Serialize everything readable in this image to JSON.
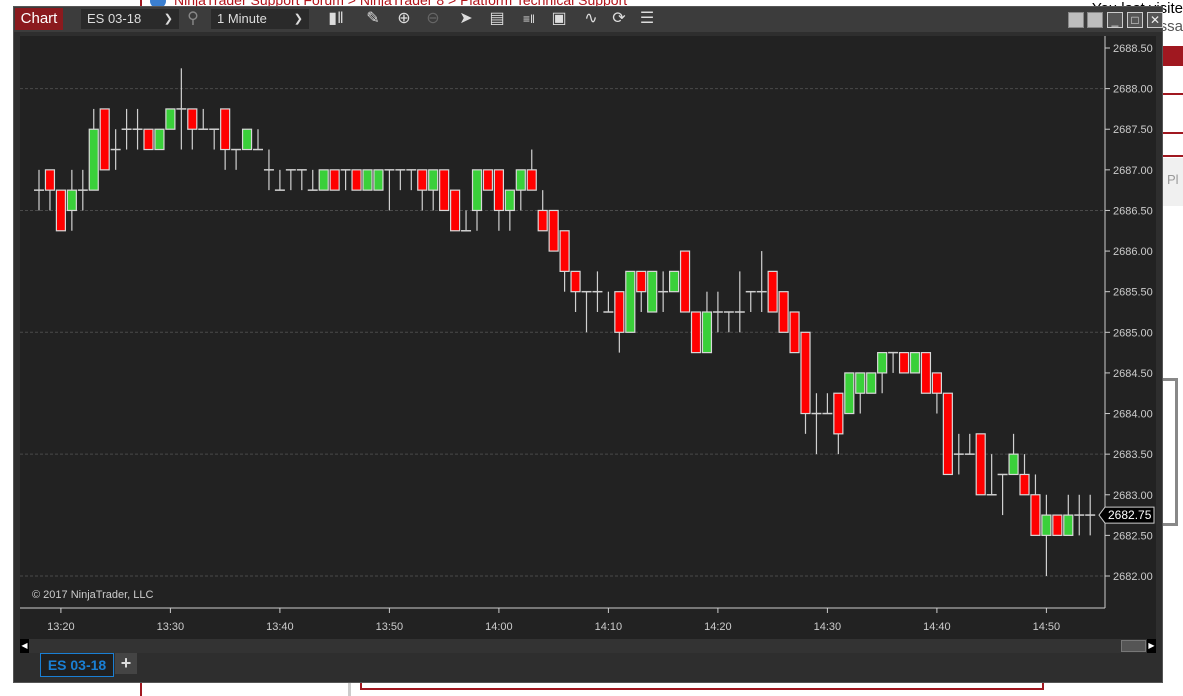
{
  "background_page": {
    "breadcrumb": "NinjaTrader Support Forum > NinjaTrader 8 > Platform Technical Support",
    "right_text_1": "You last visite",
    "right_text_2": "essa",
    "right_button_text": "Pl"
  },
  "toolbar": {
    "chart_button": "Chart",
    "instrument": "ES 03-18",
    "interval": "1 Minute",
    "icons": [
      "bar-type-icon",
      "pencil-drawing-icon",
      "zoom-in-icon",
      "zoom-out-icon",
      "pointer-icon",
      "data-box-icon",
      "chart-trader-icon",
      "templates-icon",
      "strategies-icon",
      "reload-icon",
      "properties-list-icon"
    ]
  },
  "window_buttons": [
    "tile-icon",
    "tile-icon",
    "minimize-icon",
    "maximize-icon",
    "close-icon"
  ],
  "copyright": "© 2017 NinjaTrader, LLC",
  "last_price_label": "2682.75",
  "tabs": [
    {
      "label": "ES 03-18",
      "active": true
    }
  ],
  "add_tab": "+",
  "colors": {
    "up": "#3ad03a",
    "down": "#ff0000",
    "background": "#222222",
    "accent": "#8b1a1e",
    "tab": "#1a7fd4"
  },
  "chart_data": {
    "type": "candlestick",
    "xlabel": "",
    "ylabel": "",
    "ylim": [
      2682.0,
      2688.5
    ],
    "y_ticks": [
      "2688.50",
      "2688.00",
      "2687.50",
      "2687.00",
      "2686.50",
      "2686.00",
      "2685.50",
      "2685.00",
      "2684.50",
      "2684.00",
      "2683.50",
      "2683.00",
      "2682.50",
      "2682.00"
    ],
    "x_ticks": [
      "13:20",
      "13:30",
      "13:40",
      "13:50",
      "14:00",
      "14:10",
      "14:20",
      "14:30",
      "14:40",
      "14:50"
    ],
    "grid": "dashed horizontal every 1.50",
    "columns": [
      "time",
      "open",
      "high",
      "low",
      "close"
    ],
    "candles": [
      [
        "13:18",
        2686.75,
        2687,
        2686.5,
        2686.75
      ],
      [
        "13:19",
        2687,
        2687,
        2686.5,
        2686.75
      ],
      [
        "13:20",
        2686.75,
        2686.75,
        2686.25,
        2686.25
      ],
      [
        "13:21",
        2686.5,
        2687,
        2686.25,
        2686.75
      ],
      [
        "13:22",
        2686.75,
        2687,
        2686.5,
        2686.75
      ],
      [
        "13:23",
        2686.75,
        2687.75,
        2686.75,
        2687.5
      ],
      [
        "13:24",
        2687.75,
        2687.75,
        2687,
        2687
      ],
      [
        "13:25",
        2687.25,
        2687.5,
        2687,
        2687.25
      ],
      [
        "13:26",
        2687.5,
        2687.75,
        2687.25,
        2687.5
      ],
      [
        "13:27",
        2687.5,
        2687.75,
        2687.25,
        2687.5
      ],
      [
        "13:28",
        2687.5,
        2687.5,
        2687.25,
        2687.25
      ],
      [
        "13:29",
        2687.25,
        2687.5,
        2687.25,
        2687.5
      ],
      [
        "13:30",
        2687.5,
        2687.75,
        2687.5,
        2687.75
      ],
      [
        "13:31",
        2687.75,
        2688.25,
        2687.25,
        2687.75
      ],
      [
        "13:32",
        2687.75,
        2687.75,
        2687.25,
        2687.5
      ],
      [
        "13:33",
        2687.5,
        2687.75,
        2687.5,
        2687.5
      ],
      [
        "13:34",
        2687.5,
        2687.5,
        2687.25,
        2687.5
      ],
      [
        "13:35",
        2687.75,
        2687.75,
        2687,
        2687.25
      ],
      [
        "13:36",
        2687.25,
        2687.25,
        2687,
        2687.25
      ],
      [
        "13:37",
        2687.25,
        2687.5,
        2687.25,
        2687.5
      ],
      [
        "13:38",
        2687.25,
        2687.5,
        2687.25,
        2687.25
      ],
      [
        "13:39",
        2687,
        2687.25,
        2686.75,
        2687
      ],
      [
        "13:40",
        2686.75,
        2687,
        2686.75,
        2686.75
      ],
      [
        "13:41",
        2687,
        2687,
        2686.75,
        2687
      ],
      [
        "13:42",
        2687,
        2687,
        2686.75,
        2687
      ],
      [
        "13:43",
        2686.75,
        2687,
        2686.75,
        2686.75
      ],
      [
        "13:44",
        2686.75,
        2687,
        2686.75,
        2687
      ],
      [
        "13:45",
        2687,
        2687,
        2686.75,
        2686.75
      ],
      [
        "13:46",
        2687,
        2687,
        2686.75,
        2687
      ],
      [
        "13:47",
        2687,
        2687,
        2686.75,
        2686.75
      ],
      [
        "13:48",
        2686.75,
        2687,
        2686.75,
        2687
      ],
      [
        "13:49",
        2686.75,
        2687,
        2686.75,
        2687
      ],
      [
        "13:50",
        2687,
        2687,
        2686.5,
        2687
      ],
      [
        "13:51",
        2687,
        2687,
        2686.75,
        2687
      ],
      [
        "13:52",
        2687,
        2687,
        2686.75,
        2687
      ],
      [
        "13:53",
        2687,
        2687,
        2686.5,
        2686.75
      ],
      [
        "13:54",
        2686.75,
        2687,
        2686.5,
        2687
      ],
      [
        "13:55",
        2687,
        2687,
        2686.5,
        2686.5
      ],
      [
        "13:56",
        2686.75,
        2686.75,
        2686.25,
        2686.25
      ],
      [
        "13:57",
        2686.25,
        2686.5,
        2686.25,
        2686.25
      ],
      [
        "13:58",
        2686.5,
        2687,
        2686.25,
        2687
      ],
      [
        "13:59",
        2687,
        2687,
        2686.75,
        2686.75
      ],
      [
        "14:00",
        2687,
        2687,
        2686.25,
        2686.5
      ],
      [
        "14:01",
        2686.5,
        2686.75,
        2686.25,
        2686.75
      ],
      [
        "14:02",
        2686.75,
        2687,
        2686.5,
        2687
      ],
      [
        "14:03",
        2687,
        2687.25,
        2686.75,
        2686.75
      ],
      [
        "14:04",
        2686.5,
        2686.75,
        2686.25,
        2686.25
      ],
      [
        "14:05",
        2686.5,
        2686.5,
        2686,
        2686
      ],
      [
        "14:06",
        2686.25,
        2686.25,
        2685.5,
        2685.75
      ],
      [
        "14:07",
        2685.75,
        2685.75,
        2685.25,
        2685.5
      ],
      [
        "14:08",
        2685.5,
        2685.5,
        2685,
        2685.5
      ],
      [
        "14:09",
        2685.5,
        2685.75,
        2685.25,
        2685.5
      ],
      [
        "14:10",
        2685.25,
        2685.5,
        2685.25,
        2685.25
      ],
      [
        "14:11",
        2685.5,
        2685.5,
        2684.75,
        2685
      ],
      [
        "14:12",
        2685,
        2685.75,
        2685,
        2685.75
      ],
      [
        "14:13",
        2685.75,
        2685.75,
        2685.25,
        2685.5
      ],
      [
        "14:14",
        2685.25,
        2685.75,
        2685.25,
        2685.75
      ],
      [
        "14:15",
        2685.5,
        2685.75,
        2685.25,
        2685.5
      ],
      [
        "14:16",
        2685.5,
        2685.75,
        2685.5,
        2685.75
      ],
      [
        "14:17",
        2686,
        2686,
        2685.25,
        2685.25
      ],
      [
        "14:18",
        2685.25,
        2685.25,
        2684.75,
        2684.75
      ],
      [
        "14:19",
        2684.75,
        2685.5,
        2684.75,
        2685.25
      ],
      [
        "14:20",
        2685.25,
        2685.5,
        2685,
        2685.25
      ],
      [
        "14:21",
        2685.25,
        2685.25,
        2685,
        2685.25
      ],
      [
        "14:22",
        2685.25,
        2685.75,
        2685,
        2685.25
      ],
      [
        "14:23",
        2685.5,
        2685.5,
        2685.25,
        2685.5
      ],
      [
        "14:24",
        2685.5,
        2686,
        2685.25,
        2685.5
      ],
      [
        "14:25",
        2685.75,
        2685.75,
        2685.25,
        2685.25
      ],
      [
        "14:26",
        2685.5,
        2685.5,
        2685,
        2685
      ],
      [
        "14:27",
        2685.25,
        2685.25,
        2684.75,
        2684.75
      ],
      [
        "14:28",
        2685,
        2685,
        2683.75,
        2684
      ],
      [
        "14:29",
        2684,
        2684.25,
        2683.5,
        2684
      ],
      [
        "14:30",
        2684,
        2684.25,
        2684,
        2684
      ],
      [
        "14:31",
        2684.25,
        2684.25,
        2683.5,
        2683.75
      ],
      [
        "14:32",
        2684,
        2684.5,
        2684,
        2684.5
      ],
      [
        "14:33",
        2684.25,
        2684.5,
        2684,
        2684.5
      ],
      [
        "14:34",
        2684.25,
        2684.5,
        2684.25,
        2684.5
      ],
      [
        "14:35",
        2684.5,
        2684.75,
        2684.25,
        2684.75
      ],
      [
        "14:36",
        2684.75,
        2684.75,
        2684.5,
        2684.75
      ],
      [
        "14:37",
        2684.75,
        2684.75,
        2684.5,
        2684.5
      ],
      [
        "14:38",
        2684.5,
        2684.75,
        2684.5,
        2684.75
      ],
      [
        "14:39",
        2684.75,
        2684.75,
        2684.25,
        2684.25
      ],
      [
        "14:40",
        2684.5,
        2684.5,
        2684,
        2684.25
      ],
      [
        "14:41",
        2684.25,
        2684.25,
        2683.25,
        2683.25
      ],
      [
        "14:42",
        2683.5,
        2683.75,
        2683.25,
        2683.5
      ],
      [
        "14:43",
        2683.5,
        2683.75,
        2683.5,
        2683.5
      ],
      [
        "14:44",
        2683.75,
        2683.75,
        2683,
        2683
      ],
      [
        "14:45",
        2683,
        2683.5,
        2683,
        2683
      ],
      [
        "14:46",
        2683.25,
        2683.25,
        2682.75,
        2683.25
      ],
      [
        "14:47",
        2683.25,
        2683.75,
        2683.25,
        2683.5
      ],
      [
        "14:48",
        2683.25,
        2683.5,
        2683,
        2683
      ],
      [
        "14:49",
        2683,
        2683.25,
        2682.5,
        2682.5
      ],
      [
        "14:50",
        2682.5,
        2683,
        2682,
        2682.75
      ],
      [
        "14:51",
        2682.75,
        2682.75,
        2682.5,
        2682.5
      ],
      [
        "14:52",
        2682.5,
        2683,
        2682.5,
        2682.75
      ],
      [
        "14:53",
        2682.75,
        2683,
        2682.5,
        2682.75
      ],
      [
        "14:54",
        2682.75,
        2683,
        2682.5,
        2682.75
      ]
    ],
    "last_price": 2682.75
  }
}
